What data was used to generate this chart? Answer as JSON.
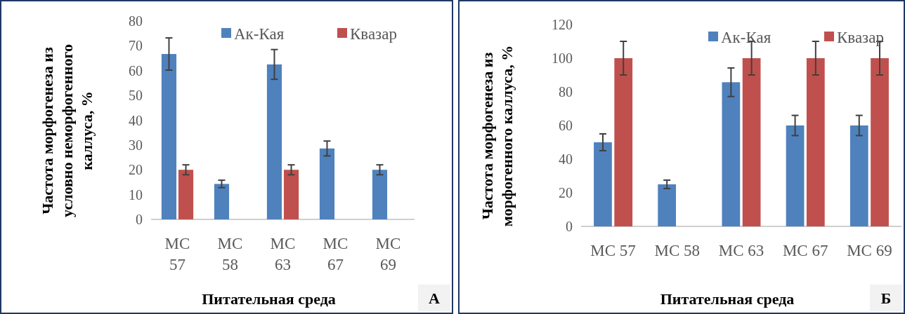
{
  "chart_data": [
    {
      "type": "bar",
      "xlabel": "Питательная среда",
      "ylabel": "Частота  морфогенеза из\nусловно неморфогенного\nкаллуса, %",
      "categories": [
        "МС 57",
        "МС 58",
        "МС 63",
        "МС 67",
        "МС 69"
      ],
      "series": [
        {
          "name": "Ак-Кая",
          "color": "#4f81bd",
          "values": [
            66.7,
            14.3,
            62.5,
            28.6,
            20
          ],
          "errors": [
            6.5,
            1.5,
            6,
            3,
            2
          ]
        },
        {
          "name": "Квазар",
          "color": "#c0504d",
          "values": [
            20,
            null,
            20,
            null,
            null
          ],
          "errors": [
            2,
            null,
            2,
            null,
            null
          ]
        }
      ],
      "ylim": [
        0,
        80
      ],
      "yticks": [
        0,
        10,
        20,
        30,
        40,
        50,
        60,
        70,
        80
      ],
      "legend": "top right",
      "annotations": [
        "А"
      ]
    },
    {
      "type": "bar",
      "xlabel": "Питательная среда",
      "ylabel": "Частота морфогенеза из\nморфогенного каллуса, %",
      "categories": [
        "МС 57",
        "МС 58",
        "МС 63",
        "МС 67",
        "МС 69"
      ],
      "series": [
        {
          "name": "Ак-Кая",
          "color": "#4f81bd",
          "values": [
            50,
            25,
            85.7,
            60,
            60
          ],
          "errors": [
            5,
            2.5,
            8.5,
            6,
            6
          ]
        },
        {
          "name": "Квазар",
          "color": "#c0504d",
          "values": [
            100,
            null,
            100,
            100,
            100
          ],
          "errors": [
            10,
            null,
            10,
            10,
            10
          ]
        }
      ],
      "ylim": [
        0,
        120
      ],
      "yticks": [
        0,
        20,
        40,
        60,
        80,
        100,
        120
      ],
      "legend": "top right",
      "annotations": [
        "Б"
      ]
    }
  ]
}
